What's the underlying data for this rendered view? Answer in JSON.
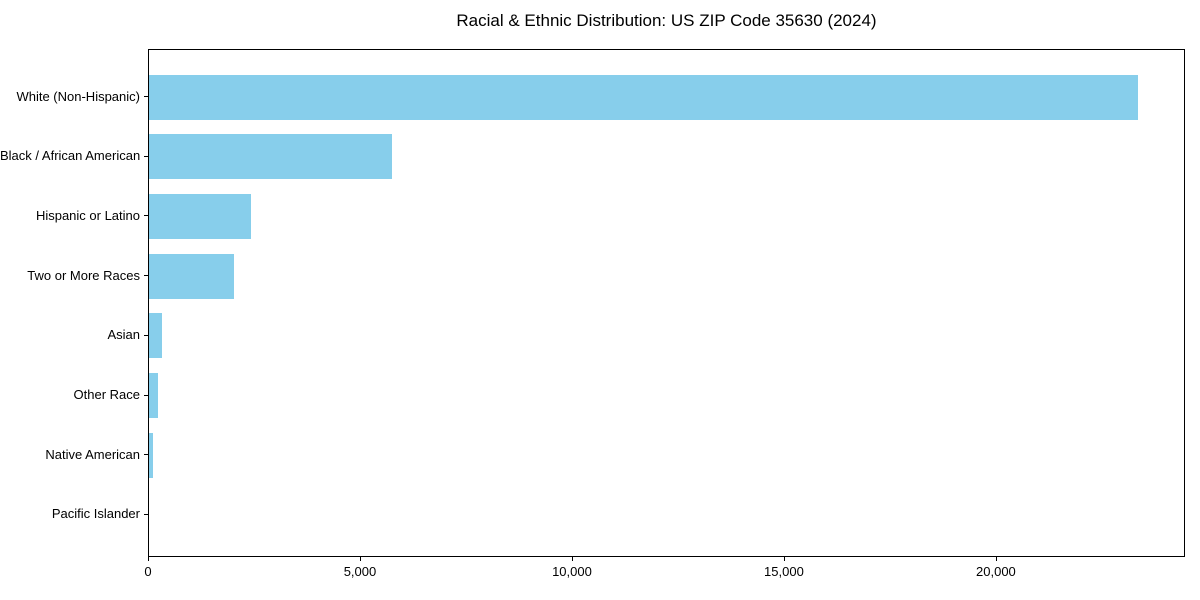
{
  "title": "Racial & Ethnic Distribution: US ZIP Code 35630 (2024)",
  "colors": {
    "bar": "#87CEEB",
    "spine": "#000000",
    "text": "#000000",
    "background": "#ffffff"
  },
  "chart_data": {
    "type": "bar",
    "orientation": "horizontal",
    "title": "Racial & Ethnic Distribution: US ZIP Code 35630 (2024)",
    "categories": [
      "White (Non-Hispanic)",
      "Black / African American",
      "Hispanic or Latino",
      "Two or More Races",
      "Asian",
      "Other Race",
      "Native American",
      "Pacific Islander"
    ],
    "values": [
      23330,
      5730,
      2400,
      2000,
      310,
      220,
      85,
      0
    ],
    "xlabel": "",
    "ylabel": "",
    "xlim": [
      0,
      24460
    ],
    "xticks": [
      0,
      5000,
      10000,
      15000,
      20000
    ],
    "xtick_labels": [
      "0",
      "5,000",
      "10,000",
      "15,000",
      "20,000"
    ],
    "grid": false,
    "legend": null,
    "bar_color": "#87CEEB",
    "sorted": "descending"
  }
}
